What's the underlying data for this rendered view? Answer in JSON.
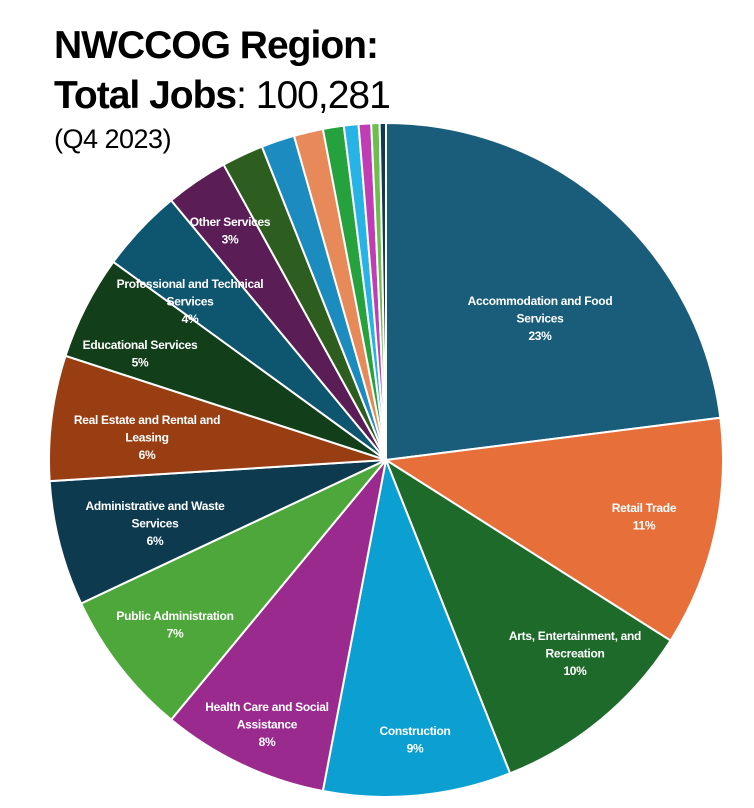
{
  "header": {
    "title_line1": "NWCCOG Region:",
    "title_line2_label": "Total Jobs",
    "title_line2_sep": ": ",
    "total_jobs": "100,281",
    "period": "(Q4 2023)"
  },
  "chart_data": {
    "type": "pie",
    "title": "NWCCOG Region: Total Jobs: 100,281 (Q4 2023)",
    "start": "12 o'clock, clockwise",
    "slices": [
      {
        "label": "Accommodation and Food Services",
        "lines": [
          "Accommodation and Food",
          "Services"
        ],
        "pct_label": "23%",
        "value": 23,
        "color": "#195d7b"
      },
      {
        "label": "Retail Trade",
        "lines": [
          "Retail Trade"
        ],
        "pct_label": "11%",
        "value": 11,
        "color": "#e76f3a"
      },
      {
        "label": "Arts, Entertainment, and Recreation",
        "lines": [
          "Arts, Entertainment, and",
          "Recreation"
        ],
        "pct_label": "10%",
        "value": 10,
        "color": "#1d6a2a"
      },
      {
        "label": "Construction",
        "lines": [
          "Construction"
        ],
        "pct_label": "9%",
        "value": 9,
        "color": "#0b9fd2"
      },
      {
        "label": "Health Care and Social Assistance",
        "lines": [
          "Health Care and Social",
          "Assistance"
        ],
        "pct_label": "8%",
        "value": 8,
        "color": "#9b2a8f"
      },
      {
        "label": "Public Administration",
        "lines": [
          "Public Administration"
        ],
        "pct_label": "7%",
        "value": 7,
        "color": "#4ea73a"
      },
      {
        "label": "Administrative and Waste Services",
        "lines": [
          "Administrative and Waste",
          "Services"
        ],
        "pct_label": "6%",
        "value": 6,
        "color": "#0d3a4f"
      },
      {
        "label": "Real Estate and Rental and Leasing",
        "lines": [
          "Real Estate and Rental and",
          "Leasing"
        ],
        "pct_label": "6%",
        "value": 6,
        "color": "#993e12"
      },
      {
        "label": "Educational Services",
        "lines": [
          "Educational Services"
        ],
        "pct_label": "5%",
        "value": 5,
        "color": "#123f1a"
      },
      {
        "label": "Professional and Technical Services",
        "lines": [
          "Professional and Technical",
          "Services"
        ],
        "pct_label": "4%",
        "value": 4,
        "color": "#0e5570"
      },
      {
        "label": "Other Services",
        "lines": [
          "Other Services"
        ],
        "pct_label": "3%",
        "value": 3,
        "color": "#5a1d56"
      },
      {
        "label": "",
        "lines": [],
        "pct_label": "",
        "value": 2.0,
        "color": "#2e5e1f"
      },
      {
        "label": "",
        "lines": [],
        "pct_label": "",
        "value": 1.6,
        "color": "#1c8bbf"
      },
      {
        "label": "",
        "lines": [],
        "pct_label": "",
        "value": 1.4,
        "color": "#e8895a"
      },
      {
        "label": "",
        "lines": [],
        "pct_label": "",
        "value": 1.0,
        "color": "#25a23d"
      },
      {
        "label": "",
        "lines": [],
        "pct_label": "",
        "value": 0.7,
        "color": "#27b3e6"
      },
      {
        "label": "",
        "lines": [],
        "pct_label": "",
        "value": 0.6,
        "color": "#c13db5"
      },
      {
        "label": "",
        "lines": [],
        "pct_label": "",
        "value": 0.4,
        "color": "#6cbf4a"
      },
      {
        "label": "",
        "lines": [],
        "pct_label": "",
        "value": 0.3,
        "color": "#0f3a52"
      }
    ]
  }
}
